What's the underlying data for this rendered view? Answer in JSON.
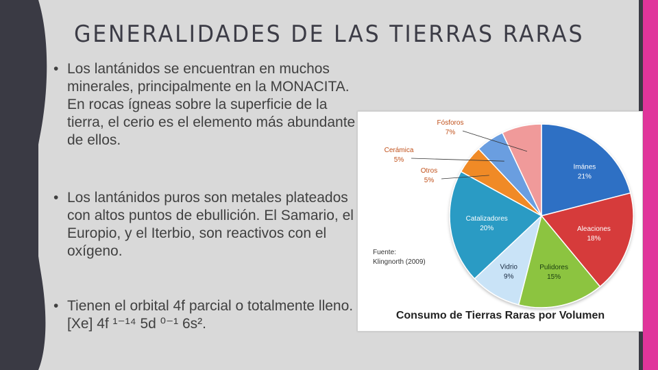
{
  "slide": {
    "title": "GENERALIDADES DE LAS TIERRAS RARAS",
    "bullets": [
      {
        "text": "Los lantánidos se encuentran en muchos minerales, principalmente en la MONACITA. En rocas ígneas sobre la superficie de la tierra, el cerio es el elemento más abundante de ellos."
      },
      {
        "text": "Los lantánidos puros son metales plateados con altos puntos de ebullición. El Samario, el Europio, y el Iterbio, son reactivos con el oxígeno."
      },
      {
        "text": "Tienen el orbital 4f parcial o totalmente lleno. [Xe] 4f ¹⁻¹⁴ 5d ⁰⁻¹ 6s²."
      }
    ],
    "colors": {
      "background": "#d9d9d9",
      "left_band": "#3a3a44",
      "accent_stripe": "#e0359b"
    }
  },
  "chart_data": {
    "type": "pie",
    "title": "Consumo de Tierras Raras por Volumen",
    "source_label": "Fuente:",
    "source_value": "Klingnorth (2009)",
    "series": [
      {
        "name": "Imánes",
        "value": 21,
        "label": "21%",
        "color": "#2f6fc4"
      },
      {
        "name": "Aleaciones",
        "value": 18,
        "label": "18%",
        "color": "#d63b3b"
      },
      {
        "name": "Pulidores",
        "value": 15,
        "label": "15%",
        "color": "#8cc43f"
      },
      {
        "name": "Vidrio",
        "value": 9,
        "label": "9%",
        "color": "#c9e3f7"
      },
      {
        "name": "Catalizadores",
        "value": 20,
        "label": "20%",
        "color": "#2a9bc4"
      },
      {
        "name": "Otros",
        "value": 5,
        "label": "5%",
        "color": "#f08a25"
      },
      {
        "name": "Cerámica",
        "value": 5,
        "label": "5%",
        "color": "#6b9ee0"
      },
      {
        "name": "Fósforos",
        "value": 7,
        "label": "7%",
        "color": "#f09a9a"
      }
    ]
  }
}
